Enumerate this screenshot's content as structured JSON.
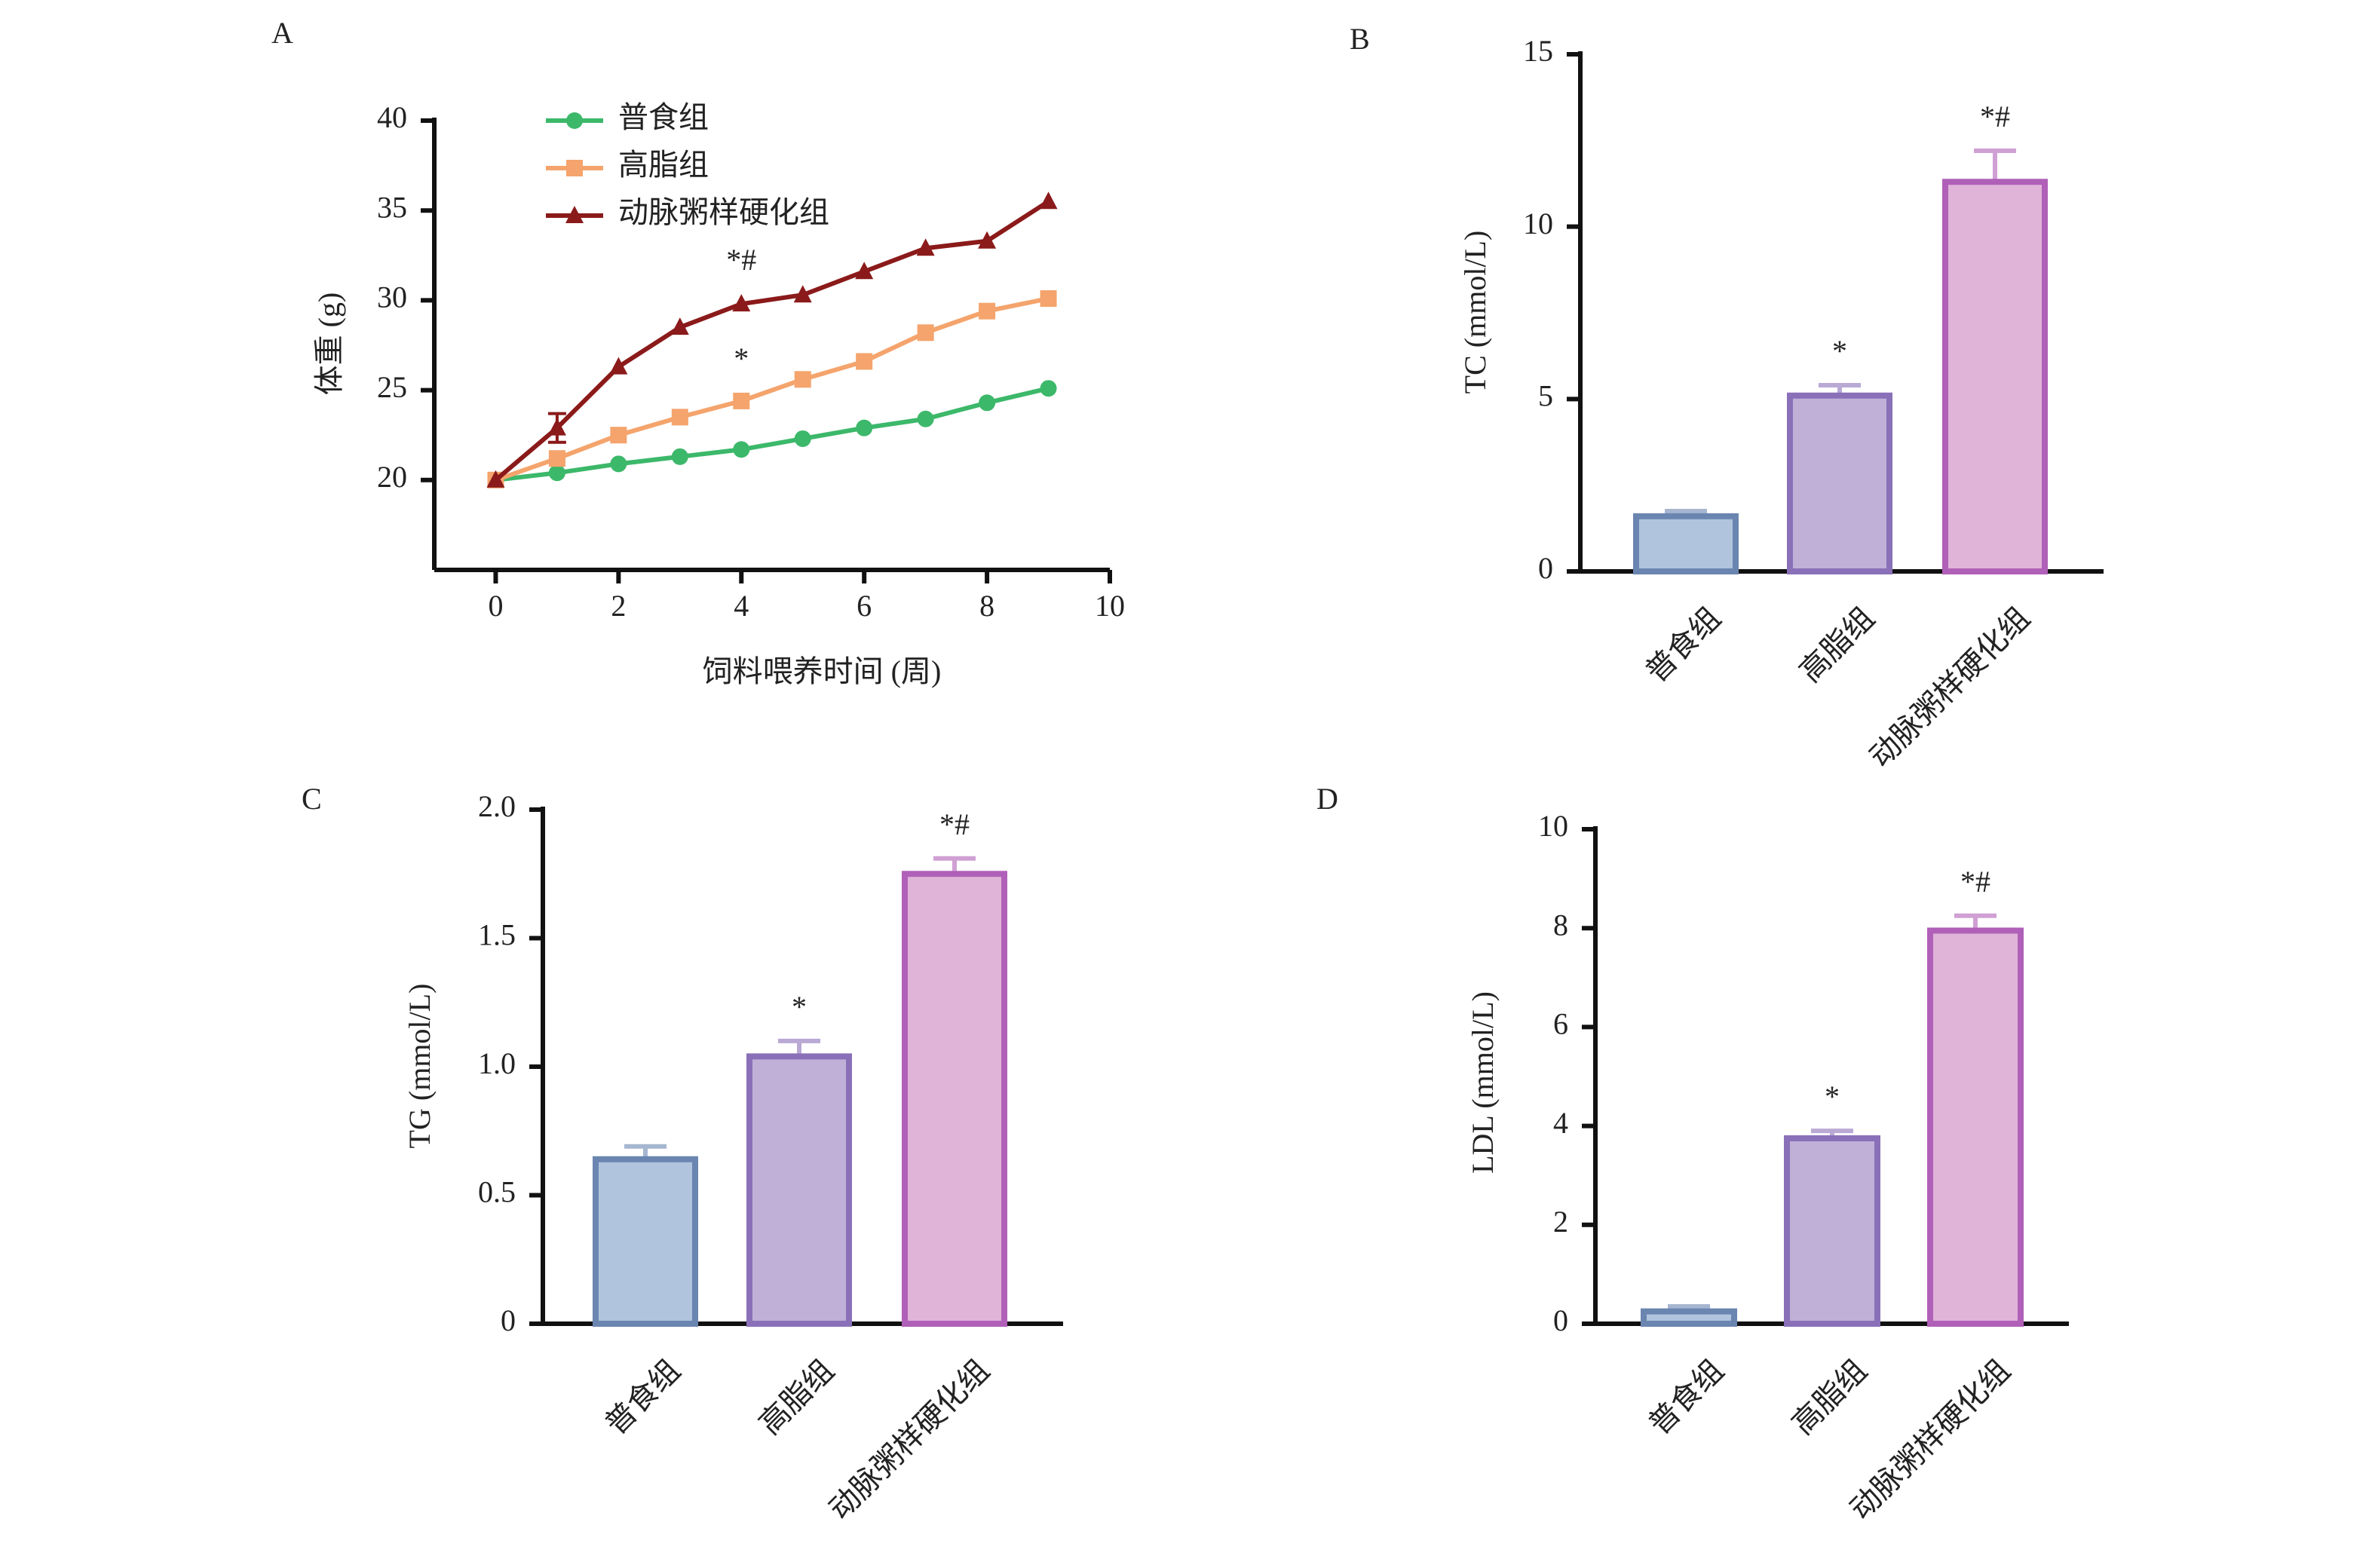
{
  "chart_data": [
    {
      "type": "line",
      "panel": "A",
      "x_label": "饲料喂养时间 (周)",
      "y_label": "体重 (g)",
      "x": [
        0,
        1,
        2,
        3,
        4,
        5,
        6,
        7,
        8,
        9
      ],
      "series": [
        {
          "name": "普食组",
          "color": "#3cb86a",
          "marker": "circle",
          "values": [
            20,
            20.4,
            20.9,
            21.3,
            21.7,
            22.3,
            22.9,
            23.4,
            24.3,
            25.1
          ]
        },
        {
          "name": "高脂组",
          "color": "#f4a46c",
          "marker": "square",
          "values": [
            20,
            21.2,
            22.5,
            23.5,
            24.4,
            25.6,
            26.6,
            28.2,
            29.4,
            30.1
          ]
        },
        {
          "name": "动脉粥样硬化组",
          "color": "#8b1a1a",
          "marker": "triangle",
          "values": [
            20,
            22.9,
            26.3,
            28.5,
            29.8,
            30.3,
            31.6,
            32.9,
            33.3,
            35.5
          ],
          "errors": [
            null,
            0.8,
            null,
            null,
            null,
            null,
            null,
            null,
            null,
            null
          ]
        }
      ],
      "annotations": [
        {
          "text": "*#",
          "x": 4,
          "y": 31.7
        },
        {
          "text": "*",
          "x": 4,
          "y": 26.2
        }
      ],
      "xlim": [
        -1,
        10
      ],
      "xticks": [
        0,
        2,
        4,
        6,
        8,
        10
      ],
      "ylim": [
        15,
        40
      ],
      "yticks": [
        20,
        25,
        30,
        35,
        40
      ]
    },
    {
      "type": "bar",
      "panel": "B",
      "y_label": "TC (mmol/L)",
      "categories": [
        "普食组",
        "高脂组",
        "动脉粥样硬化组"
      ],
      "values": [
        1.6,
        5.1,
        11.3
      ],
      "errors": [
        0.15,
        0.3,
        0.9
      ],
      "colors": [
        "#b0c4de",
        "#c0b0d8",
        "#e0b4d8"
      ],
      "edge_colors": [
        "#6a85b0",
        "#8a70b8",
        "#b060b8"
      ],
      "annotations": [
        {
          "text": "*",
          "category": "高脂组"
        },
        {
          "text": "*#",
          "category": "动脉粥样硬化组"
        }
      ],
      "ylim": [
        0,
        15
      ],
      "yticks": [
        0,
        5,
        10,
        15
      ]
    },
    {
      "type": "bar",
      "panel": "C",
      "y_label": "TG (mmol/L)",
      "categories": [
        "普食组",
        "高脂组",
        "动脉粥样硬化组"
      ],
      "values": [
        0.64,
        1.04,
        1.75
      ],
      "errors": [
        0.05,
        0.06,
        0.06
      ],
      "colors": [
        "#b0c4de",
        "#c0b0d8",
        "#e0b4d8"
      ],
      "edge_colors": [
        "#6a85b0",
        "#8a70b8",
        "#b060b8"
      ],
      "annotations": [
        {
          "text": "*",
          "category": "高脂组"
        },
        {
          "text": "*#",
          "category": "动脉粥样硬化组"
        }
      ],
      "ylim": [
        0,
        2
      ],
      "yticks": [
        0,
        0.5,
        {
          "value": 1,
          "label": "1.0"
        },
        1.5,
        {
          "value": 2,
          "label": "2.0"
        }
      ]
    },
    {
      "type": "bar",
      "panel": "D",
      "y_label": "LDL (mmol/L)",
      "categories": [
        "普食组",
        "高脂组",
        "动脉粥样硬化组"
      ],
      "values": [
        0.25,
        3.75,
        7.95
      ],
      "errors": [
        0.1,
        0.15,
        0.3
      ],
      "colors": [
        "#b0c4de",
        "#c0b0d8",
        "#e0b4d8"
      ],
      "edge_colors": [
        "#6a85b0",
        "#8a70b8",
        "#b060b8"
      ],
      "annotations": [
        {
          "text": "*",
          "category": "高脂组"
        },
        {
          "text": "*#",
          "category": "动脉粥样硬化组"
        }
      ],
      "ylim": [
        0,
        10
      ],
      "yticks": [
        0,
        2,
        4,
        6,
        8,
        10
      ]
    }
  ]
}
